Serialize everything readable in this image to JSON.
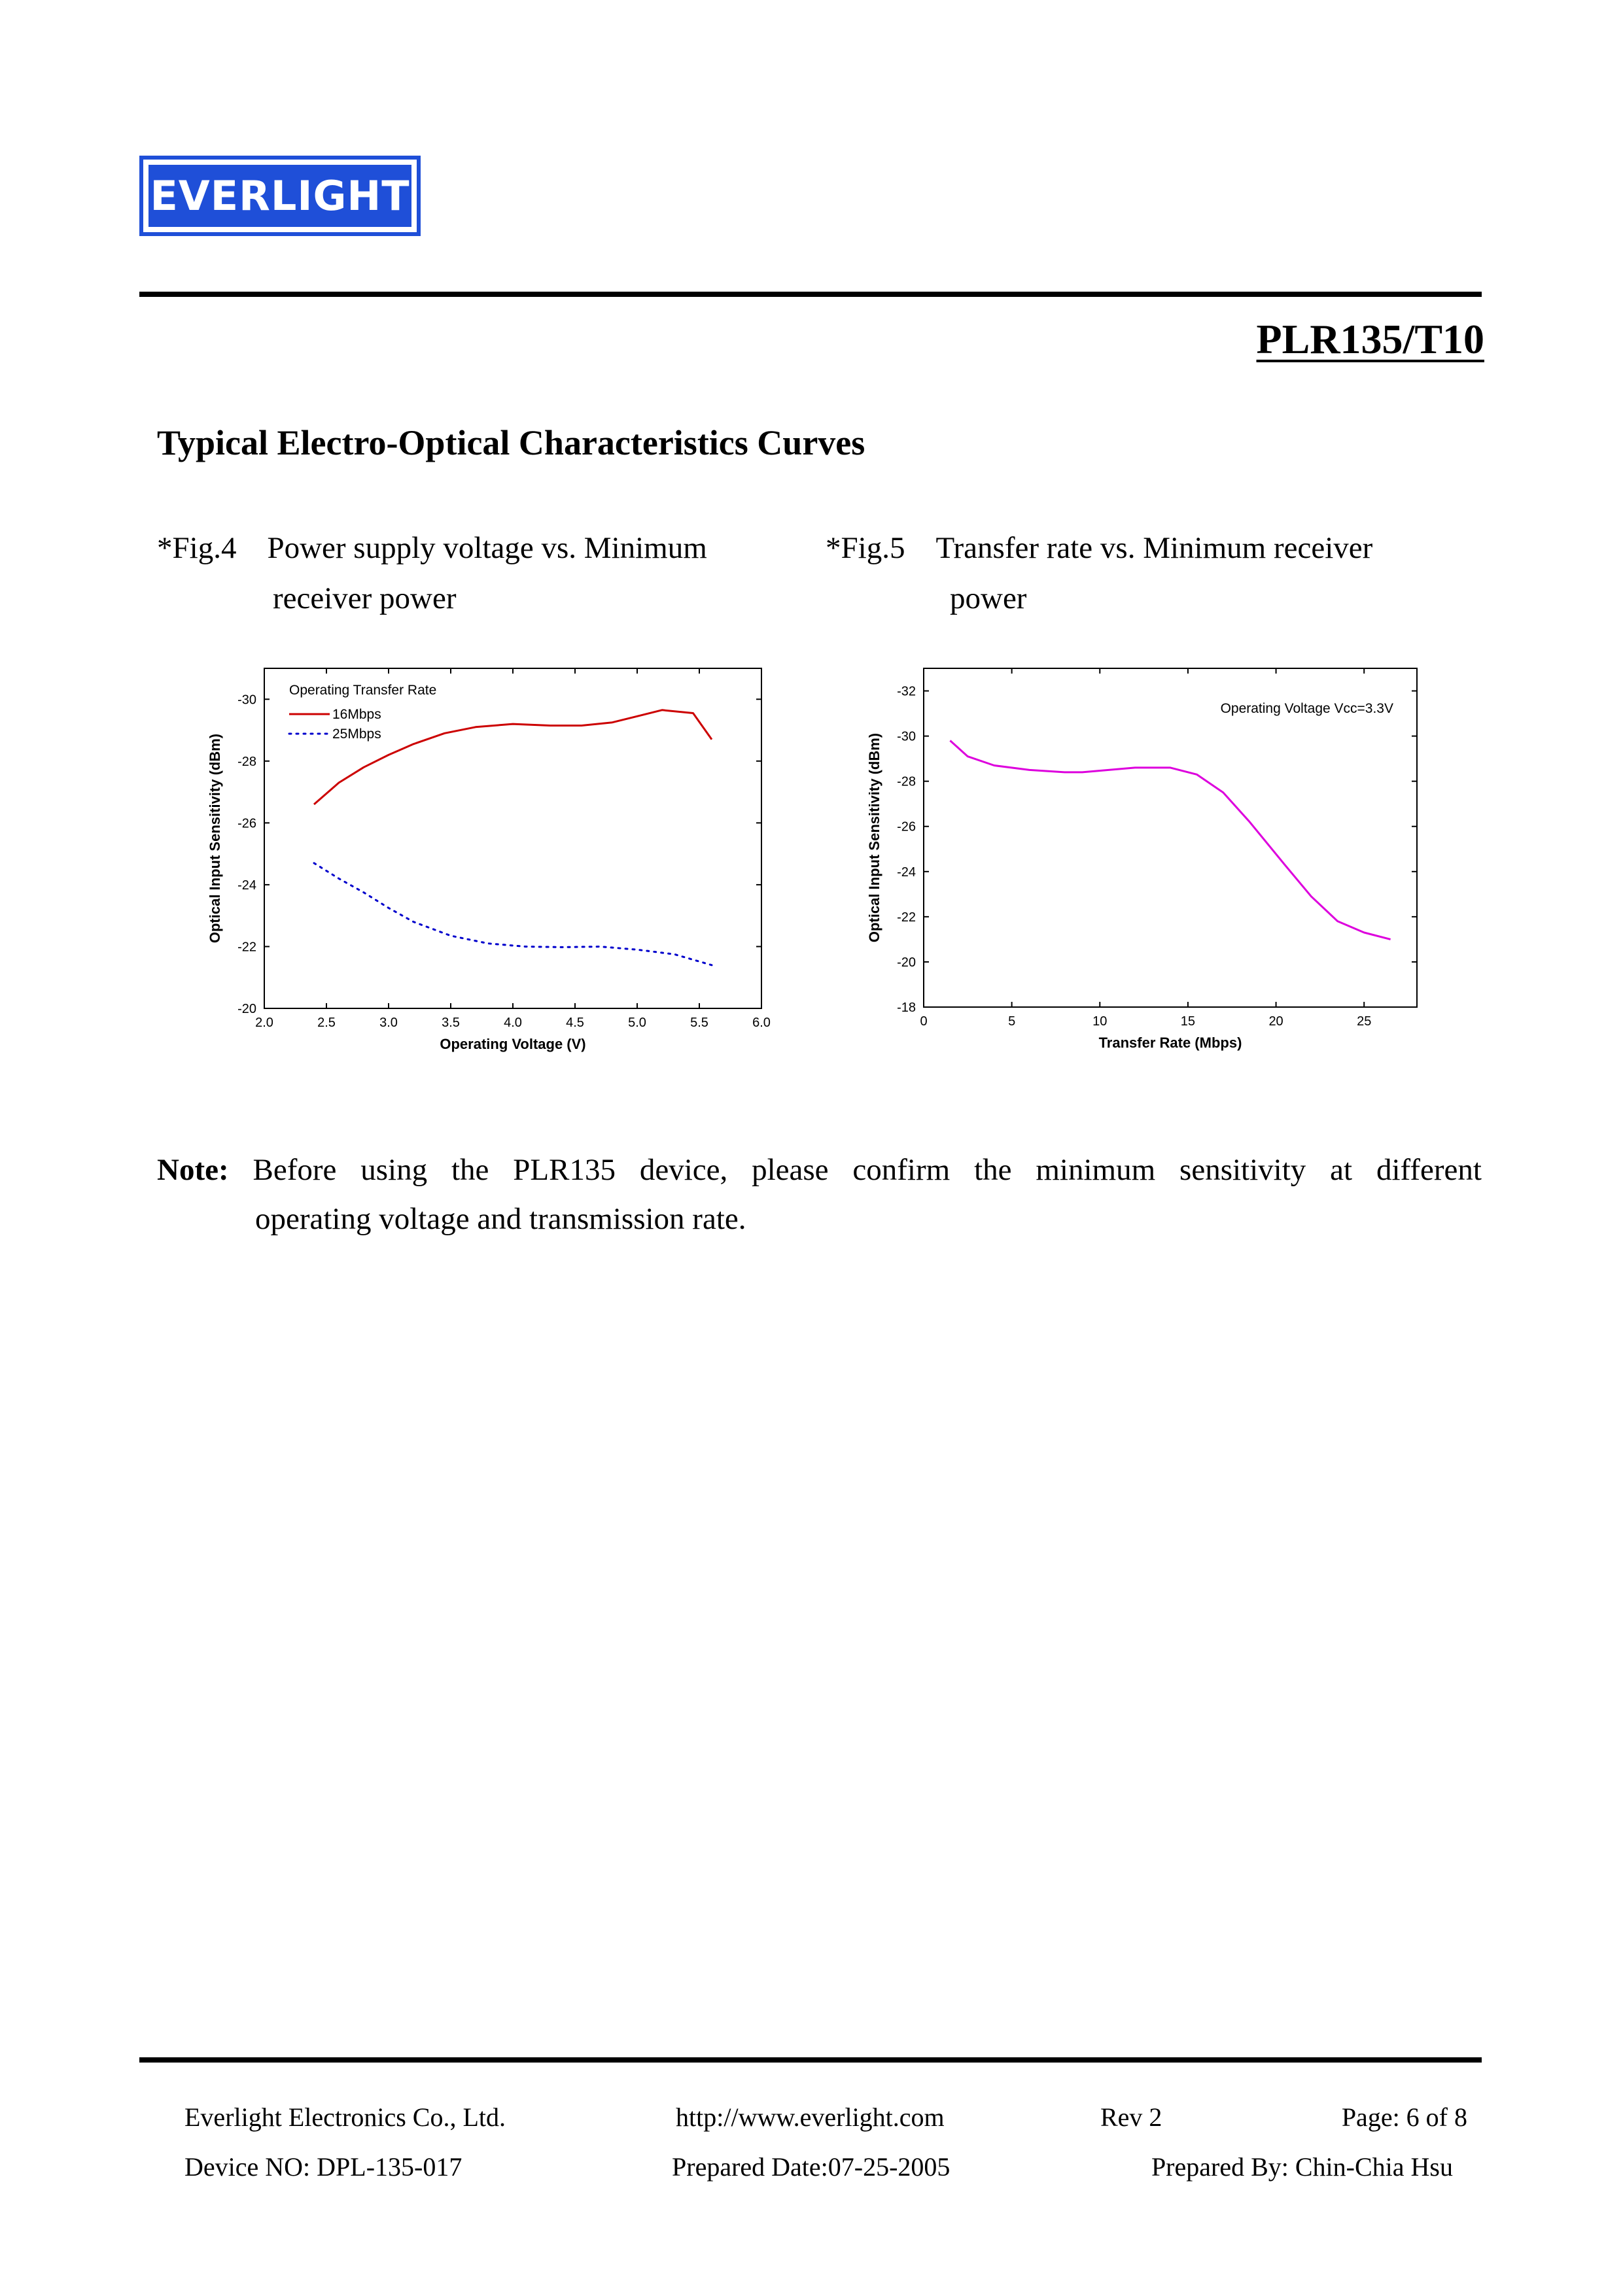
{
  "logo": {
    "text": "EVERLIGHT",
    "color": "#1f4fd8"
  },
  "header": {
    "doc_title": "PLR135/T10"
  },
  "section_title": "Typical Electro-Optical Characteristics Curves",
  "figures": {
    "fig4": {
      "number": "*Fig.4",
      "caption_line1": "Power supply voltage vs. Minimum",
      "caption_line2": "receiver power"
    },
    "fig5": {
      "number": "*Fig.5",
      "caption_line1": "Transfer rate vs. Minimum receiver",
      "caption_line2": "power"
    }
  },
  "chart_data": [
    {
      "type": "line",
      "xlabel": "Operating Voltage (V)",
      "ylabel": "Optical Input Sensitivity (dBm)",
      "xlim": [
        2.0,
        6.0
      ],
      "ylim": [
        -20,
        -31
      ],
      "xticks": [
        "2.0",
        "2.5",
        "3.0",
        "3.5",
        "4.0",
        "4.5",
        "5.0",
        "5.5",
        "6.0"
      ],
      "yticks": [
        "-20",
        "-22",
        "-24",
        "-26",
        "-28",
        "-30"
      ],
      "legend_title": "Operating Transfer Rate",
      "legend_position": "top-left",
      "series": [
        {
          "name": "16Mbps",
          "color": "#cc0000",
          "style": "solid",
          "x": [
            2.4,
            2.6,
            2.8,
            3.0,
            3.2,
            3.45,
            3.7,
            4.0,
            4.3,
            4.55,
            4.8,
            5.0,
            5.2,
            5.45,
            5.6
          ],
          "y": [
            -26.6,
            -27.3,
            -27.8,
            -28.2,
            -28.55,
            -28.9,
            -29.1,
            -29.2,
            -29.15,
            -29.15,
            -29.25,
            -29.45,
            -29.65,
            -29.55,
            -28.7
          ]
        },
        {
          "name": "25Mbps",
          "color": "#0000cc",
          "style": "dotted",
          "x": [
            2.4,
            2.6,
            2.8,
            3.0,
            3.2,
            3.5,
            3.8,
            4.1,
            4.4,
            4.7,
            5.0,
            5.3,
            5.6
          ],
          "y": [
            -24.7,
            -24.2,
            -23.75,
            -23.25,
            -22.8,
            -22.35,
            -22.1,
            -22.0,
            -21.98,
            -22.0,
            -21.9,
            -21.75,
            -21.4
          ]
        }
      ]
    },
    {
      "type": "line",
      "xlabel": "Transfer Rate (Mbps)",
      "ylabel": "Optical Input Sensitivity (dBm)",
      "xlim": [
        0,
        28
      ],
      "ylim": [
        -18,
        -33
      ],
      "xticks": [
        "0",
        "5",
        "10",
        "15",
        "20",
        "25"
      ],
      "yticks": [
        "-18",
        "-20",
        "-22",
        "-24",
        "-26",
        "-28",
        "-30",
        "-32"
      ],
      "annotation": "Operating Voltage Vcc=3.3V",
      "series": [
        {
          "name": "",
          "color": "#dd00dd",
          "style": "solid",
          "x": [
            1.5,
            2.5,
            4,
            6,
            8,
            9,
            10.5,
            12,
            14,
            15.5,
            17,
            18.5,
            20.5,
            22,
            23.5,
            25,
            26.5
          ],
          "y": [
            -29.8,
            -29.1,
            -28.7,
            -28.5,
            -28.4,
            -28.4,
            -28.5,
            -28.6,
            -28.6,
            -28.3,
            -27.5,
            -26.2,
            -24.3,
            -22.9,
            -21.8,
            -21.3,
            -21.0
          ]
        }
      ]
    }
  ],
  "note": {
    "label": "Note:",
    "words": [
      "Before",
      "using",
      "the",
      "PLR135",
      "device,",
      "please",
      "confirm",
      "the",
      "minimum",
      "sensitivity",
      "at",
      "different"
    ],
    "line2": "operating voltage and transmission rate."
  },
  "footer": {
    "company": "Everlight Electronics Co., Ltd.",
    "url": "http://www.everlight.com",
    "rev": "Rev 2",
    "page": "Page: 6 of 8",
    "device_no": "Device NO: DPL-135-017",
    "prepared_date": "Prepared Date:07-25-2005",
    "prepared_by": "Prepared By: Chin-Chia Hsu"
  }
}
